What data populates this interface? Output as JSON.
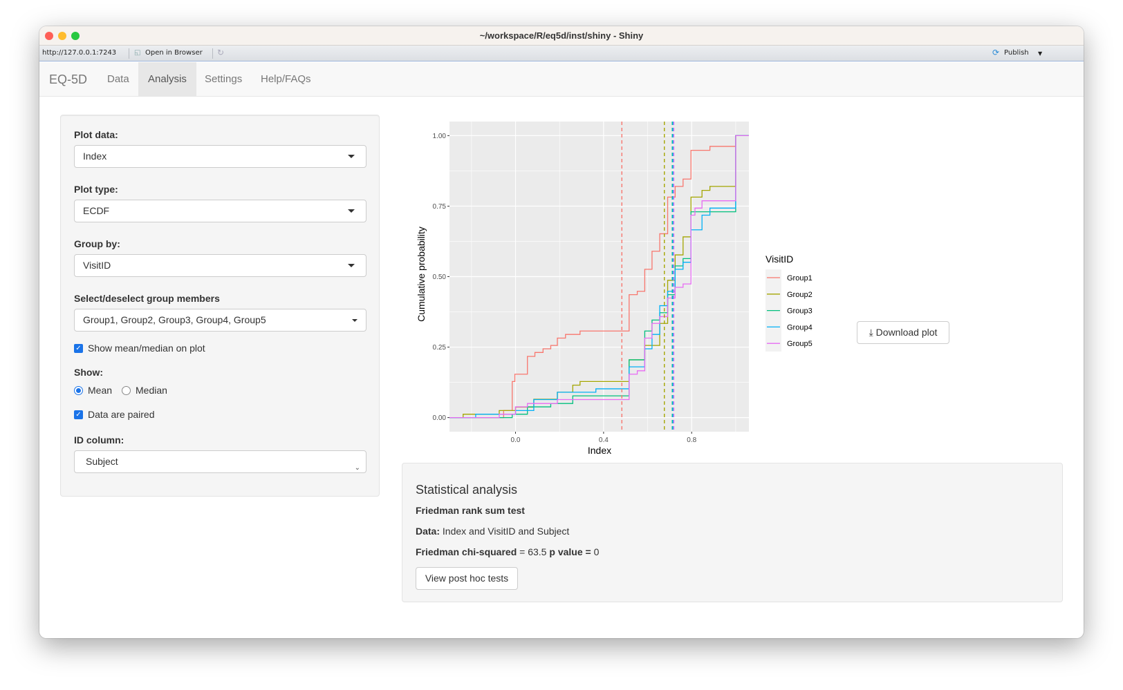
{
  "window": {
    "title": "~/workspace/R/eq5d/inst/shiny - Shiny",
    "traffic_lights": [
      "#fe5f57",
      "#febc2e",
      "#28c840"
    ]
  },
  "toolbar": {
    "url": "http://127.0.0.1:7243",
    "open_in_browser": "Open in Browser",
    "publish": "Publish"
  },
  "navbar": {
    "brand": "EQ-5D",
    "tabs": [
      {
        "label": "Data",
        "active": false
      },
      {
        "label": "Analysis",
        "active": true
      },
      {
        "label": "Settings",
        "active": false
      },
      {
        "label": "Help/FAQs",
        "active": false
      }
    ]
  },
  "sidebar": {
    "plot_data": {
      "label": "Plot data:",
      "value": "Index"
    },
    "plot_type": {
      "label": "Plot type:",
      "value": "ECDF"
    },
    "group_by": {
      "label": "Group by:",
      "value": "VisitID"
    },
    "group_members": {
      "label": "Select/deselect group members",
      "value": "Group1, Group2, Group3, Group4, Group5"
    },
    "show_mean_median": {
      "label": "Show mean/median on plot",
      "checked": true
    },
    "show": {
      "label": "Show:",
      "options": [
        "Mean",
        "Median"
      ],
      "selected": "Mean"
    },
    "paired": {
      "label": "Data are paired",
      "checked": true
    },
    "id_column": {
      "label": "ID column:",
      "value": "Subject"
    }
  },
  "download_button": "Download plot",
  "stats": {
    "title": "Statistical analysis",
    "test_name": "Friedman rank sum test",
    "data_label": "Data:",
    "data_value": "Index and VisitID and Subject",
    "stat_label": "Friedman chi-squared",
    "stat_value": "= 63.5",
    "p_label": "p value =",
    "p_value": "0",
    "post_hoc_button": "View post hoc tests"
  },
  "chart_data": {
    "type": "line",
    "subtype": "ecdf-step",
    "xlabel": "Index",
    "ylabel": "Cumulative probability",
    "xlim": [
      -0.3,
      1.06
    ],
    "ylim": [
      -0.05,
      1.05
    ],
    "xticks": [
      "0.0",
      "0.4",
      "0.8"
    ],
    "xtick_values": [
      0.0,
      0.4,
      0.8
    ],
    "yticks": [
      "0.00",
      "0.25",
      "0.50",
      "0.75",
      "1.00"
    ],
    "ytick_values": [
      0,
      0.25,
      0.5,
      0.75,
      1.0
    ],
    "grid": true,
    "legend": {
      "title": "VisitID",
      "position": "right"
    },
    "series": [
      {
        "name": "Group1",
        "color": "#F8766D",
        "mean": 0.483,
        "x": [
          -0.054,
          -0.015,
          -0.003,
          0.054,
          0.088,
          0.125,
          0.16,
          0.19,
          0.227,
          0.293,
          0.516,
          0.553,
          0.587,
          0.62,
          0.655,
          0.691,
          0.725,
          0.761,
          0.797,
          0.883,
          1.0
        ],
        "y": [
          0.025,
          0.128,
          0.154,
          0.217,
          0.231,
          0.244,
          0.256,
          0.282,
          0.295,
          0.307,
          0.436,
          0.448,
          0.526,
          0.59,
          0.652,
          0.782,
          0.82,
          0.846,
          0.948,
          0.962,
          1.0
        ]
      },
      {
        "name": "Group2",
        "color": "#A3A500",
        "mean": 0.676,
        "x": [
          -0.238,
          -0.074,
          0.0,
          0.083,
          0.19,
          0.26,
          0.293,
          0.516,
          0.587,
          0.655,
          0.691,
          0.725,
          0.761,
          0.797,
          0.847,
          0.883,
          1.0
        ],
        "y": [
          0.012,
          0.025,
          0.037,
          0.065,
          0.09,
          0.115,
          0.128,
          0.205,
          0.256,
          0.334,
          0.487,
          0.577,
          0.641,
          0.782,
          0.806,
          0.82,
          1.0
        ]
      },
      {
        "name": "Group3",
        "color": "#00BF7D",
        "mean": 0.712,
        "x": [
          -0.015,
          0.054,
          0.16,
          0.26,
          0.516,
          0.587,
          0.62,
          0.655,
          0.691,
          0.725,
          0.761,
          0.797,
          1.0
        ],
        "y": [
          0.012,
          0.038,
          0.05,
          0.077,
          0.205,
          0.307,
          0.346,
          0.372,
          0.436,
          0.538,
          0.564,
          0.73,
          1.0
        ]
      },
      {
        "name": "Group4",
        "color": "#00B0F6",
        "mean": 0.715,
        "x": [
          -0.181,
          0.0,
          0.083,
          0.19,
          0.365,
          0.516,
          0.587,
          0.62,
          0.655,
          0.691,
          0.725,
          0.761,
          0.797,
          0.847,
          0.883,
          1.0
        ],
        "y": [
          0.012,
          0.025,
          0.064,
          0.09,
          0.102,
          0.18,
          0.244,
          0.295,
          0.397,
          0.448,
          0.526,
          0.551,
          0.666,
          0.718,
          0.743,
          1.0
        ]
      },
      {
        "name": "Group5",
        "color": "#E76BF3",
        "mean": 0.719,
        "x": [
          -0.074,
          0.0,
          0.054,
          0.19,
          0.516,
          0.553,
          0.587,
          0.62,
          0.655,
          0.691,
          0.725,
          0.761,
          0.797,
          0.815,
          0.847,
          1.0
        ],
        "y": [
          0.012,
          0.038,
          0.05,
          0.064,
          0.154,
          0.166,
          0.282,
          0.334,
          0.358,
          0.424,
          0.462,
          0.474,
          0.718,
          0.743,
          0.769,
          1.0
        ]
      }
    ]
  }
}
